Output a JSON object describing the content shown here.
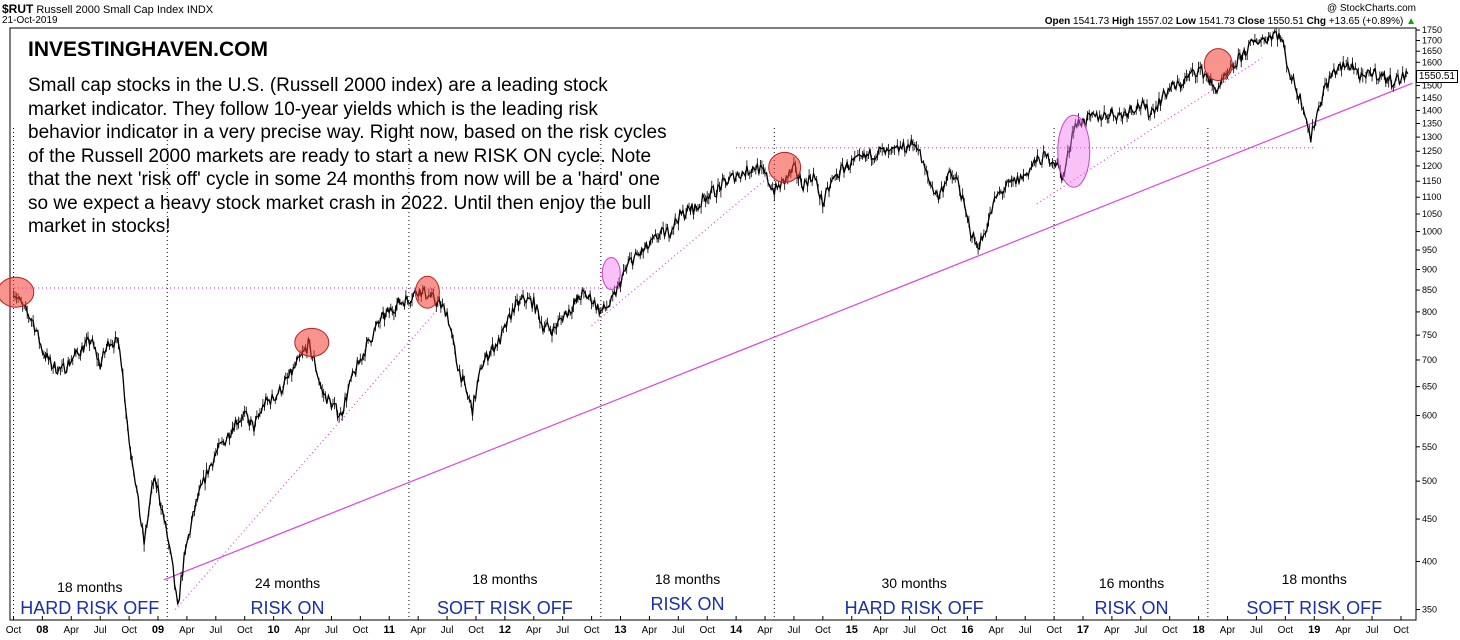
{
  "header": {
    "symbol": "$RUT",
    "name": "Russell 2000 Small Cap Index",
    "exchange": "INDX",
    "date": "21-Oct-2019",
    "brand": "@ StockCharts.com",
    "open_label": "Open",
    "open": "1541.73",
    "high_label": "High",
    "high": "1557.02",
    "low_label": "Low",
    "low": "1541.73",
    "close_label": "Close",
    "close": "1550.51",
    "chg_label": "Chg",
    "chg": "+13.65 (+0.89%)",
    "chg_arrow": "▲"
  },
  "note": {
    "title": "INVESTINGHAVEN.COM",
    "body": "Small cap stocks in the U.S. (Russell 2000 index) are a leading stock market indicator. They follow 10-year yields which is the leading risk behavior indicator in a very precise way. Right now, based on the risk cycles of the Russell 2000 markets are ready to start a new RISK ON cycle. Note that the next 'risk off' cycle in some 24 months from now will be a 'hard' one so we expect a heavy stock market crash in 2022. Until then enjoy the bull market in stocks!"
  },
  "chart_data": {
    "type": "line",
    "scale": "log",
    "ylim": [
      340,
      1760
    ],
    "xlim": [
      2007.72,
      2019.88
    ],
    "y_ticks": [
      350,
      400,
      450,
      500,
      550,
      600,
      650,
      700,
      750,
      800,
      850,
      900,
      950,
      1000,
      1050,
      1100,
      1150,
      1200,
      1250,
      1300,
      1350,
      1400,
      1450,
      1500,
      1550,
      1600,
      1650,
      1700,
      1750
    ],
    "last_value": "1550.51",
    "x_ticks": [
      {
        "label": "Oct",
        "t": 2007.75
      },
      {
        "label": "08",
        "t": 2008.0,
        "major": true
      },
      {
        "label": "Apr",
        "t": 2008.25
      },
      {
        "label": "Jul",
        "t": 2008.5
      },
      {
        "label": "Oct",
        "t": 2008.75
      },
      {
        "label": "09",
        "t": 2009.0,
        "major": true
      },
      {
        "label": "Apr",
        "t": 2009.25
      },
      {
        "label": "Jul",
        "t": 2009.5
      },
      {
        "label": "Oct",
        "t": 2009.75
      },
      {
        "label": "10",
        "t": 2010.0,
        "major": true
      },
      {
        "label": "Apr",
        "t": 2010.25
      },
      {
        "label": "Jul",
        "t": 2010.5
      },
      {
        "label": "Oct",
        "t": 2010.75
      },
      {
        "label": "11",
        "t": 2011.0,
        "major": true
      },
      {
        "label": "Apr",
        "t": 2011.25
      },
      {
        "label": "Jul",
        "t": 2011.5
      },
      {
        "label": "Oct",
        "t": 2011.75
      },
      {
        "label": "12",
        "t": 2012.0,
        "major": true
      },
      {
        "label": "Apr",
        "t": 2012.25
      },
      {
        "label": "Jul",
        "t": 2012.5
      },
      {
        "label": "Oct",
        "t": 2012.75
      },
      {
        "label": "13",
        "t": 2013.0,
        "major": true
      },
      {
        "label": "Apr",
        "t": 2013.25
      },
      {
        "label": "Jul",
        "t": 2013.5
      },
      {
        "label": "Oct",
        "t": 2013.75
      },
      {
        "label": "14",
        "t": 2014.0,
        "major": true
      },
      {
        "label": "Apr",
        "t": 2014.25
      },
      {
        "label": "Jul",
        "t": 2014.5
      },
      {
        "label": "Oct",
        "t": 2014.75
      },
      {
        "label": "15",
        "t": 2015.0,
        "major": true
      },
      {
        "label": "Apr",
        "t": 2015.25
      },
      {
        "label": "Jul",
        "t": 2015.5
      },
      {
        "label": "Oct",
        "t": 2015.75
      },
      {
        "label": "16",
        "t": 2016.0,
        "major": true
      },
      {
        "label": "Apr",
        "t": 2016.25
      },
      {
        "label": "Jul",
        "t": 2016.5
      },
      {
        "label": "Oct",
        "t": 2016.75
      },
      {
        "label": "17",
        "t": 2017.0,
        "major": true
      },
      {
        "label": "Apr",
        "t": 2017.25
      },
      {
        "label": "Jul",
        "t": 2017.5
      },
      {
        "label": "Oct",
        "t": 2017.75
      },
      {
        "label": "18",
        "t": 2018.0,
        "major": true
      },
      {
        "label": "Apr",
        "t": 2018.25
      },
      {
        "label": "Jul",
        "t": 2018.5
      },
      {
        "label": "Oct",
        "t": 2018.75
      },
      {
        "label": "19",
        "t": 2019.0,
        "major": true
      },
      {
        "label": "Apr",
        "t": 2019.25
      },
      {
        "label": "Jul",
        "t": 2019.5
      },
      {
        "label": "Oct",
        "t": 2019.75
      }
    ],
    "series": [
      {
        "points": [
          [
            2007.75,
            850
          ],
          [
            2007.83,
            810
          ],
          [
            2007.92,
            780
          ],
          [
            2008.0,
            720
          ],
          [
            2008.08,
            690
          ],
          [
            2008.17,
            680
          ],
          [
            2008.25,
            700
          ],
          [
            2008.33,
            720
          ],
          [
            2008.42,
            740
          ],
          [
            2008.5,
            690
          ],
          [
            2008.58,
            740
          ],
          [
            2008.67,
            730
          ],
          [
            2008.75,
            560
          ],
          [
            2008.79,
            520
          ],
          [
            2008.83,
            470
          ],
          [
            2008.88,
            420
          ],
          [
            2008.92,
            460
          ],
          [
            2008.96,
            500
          ],
          [
            2009.0,
            490
          ],
          [
            2009.08,
            430
          ],
          [
            2009.13,
            390
          ],
          [
            2009.17,
            350
          ],
          [
            2009.2,
            380
          ],
          [
            2009.25,
            420
          ],
          [
            2009.33,
            470
          ],
          [
            2009.42,
            510
          ],
          [
            2009.5,
            540
          ],
          [
            2009.58,
            560
          ],
          [
            2009.67,
            590
          ],
          [
            2009.75,
            600
          ],
          [
            2009.83,
            580
          ],
          [
            2009.92,
            620
          ],
          [
            2010.0,
            630
          ],
          [
            2010.08,
            650
          ],
          [
            2010.17,
            680
          ],
          [
            2010.25,
            710
          ],
          [
            2010.3,
            730
          ],
          [
            2010.35,
            700
          ],
          [
            2010.42,
            640
          ],
          [
            2010.5,
            620
          ],
          [
            2010.58,
            600
          ],
          [
            2010.67,
            660
          ],
          [
            2010.75,
            700
          ],
          [
            2010.83,
            740
          ],
          [
            2010.92,
            780
          ],
          [
            2011.0,
            800
          ],
          [
            2011.08,
            820
          ],
          [
            2011.17,
            830
          ],
          [
            2011.25,
            850
          ],
          [
            2011.33,
            840
          ],
          [
            2011.42,
            820
          ],
          [
            2011.5,
            800
          ],
          [
            2011.58,
            700
          ],
          [
            2011.65,
            650
          ],
          [
            2011.72,
            610
          ],
          [
            2011.8,
            690
          ],
          [
            2011.88,
            720
          ],
          [
            2011.96,
            740
          ],
          [
            2012.08,
            810
          ],
          [
            2012.17,
            830
          ],
          [
            2012.25,
            820
          ],
          [
            2012.33,
            770
          ],
          [
            2012.42,
            760
          ],
          [
            2012.5,
            790
          ],
          [
            2012.58,
            810
          ],
          [
            2012.67,
            840
          ],
          [
            2012.75,
            830
          ],
          [
            2012.83,
            800
          ],
          [
            2012.92,
            820
          ],
          [
            2013.0,
            870
          ],
          [
            2013.08,
            920
          ],
          [
            2013.17,
            940
          ],
          [
            2013.25,
            960
          ],
          [
            2013.33,
            990
          ],
          [
            2013.42,
            1000
          ],
          [
            2013.5,
            1040
          ],
          [
            2013.58,
            1060
          ],
          [
            2013.67,
            1070
          ],
          [
            2013.75,
            1110
          ],
          [
            2013.83,
            1120
          ],
          [
            2013.92,
            1150
          ],
          [
            2014.0,
            1170
          ],
          [
            2014.08,
            1180
          ],
          [
            2014.17,
            1200
          ],
          [
            2014.25,
            1170
          ],
          [
            2014.33,
            1120
          ],
          [
            2014.42,
            1150
          ],
          [
            2014.5,
            1190
          ],
          [
            2014.58,
            1140
          ],
          [
            2014.67,
            1170
          ],
          [
            2014.75,
            1080
          ],
          [
            2014.83,
            1150
          ],
          [
            2014.92,
            1190
          ],
          [
            2015.0,
            1210
          ],
          [
            2015.08,
            1220
          ],
          [
            2015.17,
            1240
          ],
          [
            2015.25,
            1250
          ],
          [
            2015.33,
            1240
          ],
          [
            2015.42,
            1260
          ],
          [
            2015.5,
            1270
          ],
          [
            2015.56,
            1280
          ],
          [
            2015.62,
            1200
          ],
          [
            2015.67,
            1150
          ],
          [
            2015.75,
            1100
          ],
          [
            2015.83,
            1170
          ],
          [
            2015.92,
            1150
          ],
          [
            2016.0,
            1030
          ],
          [
            2016.08,
            960
          ],
          [
            2016.13,
            980
          ],
          [
            2016.25,
            1100
          ],
          [
            2016.33,
            1130
          ],
          [
            2016.42,
            1150
          ],
          [
            2016.5,
            1170
          ],
          [
            2016.58,
            1210
          ],
          [
            2016.67,
            1230
          ],
          [
            2016.75,
            1220
          ],
          [
            2016.83,
            1160
          ],
          [
            2016.92,
            1340
          ],
          [
            2017.0,
            1360
          ],
          [
            2017.08,
            1370
          ],
          [
            2017.17,
            1380
          ],
          [
            2017.25,
            1390
          ],
          [
            2017.33,
            1380
          ],
          [
            2017.42,
            1410
          ],
          [
            2017.5,
            1420
          ],
          [
            2017.58,
            1390
          ],
          [
            2017.67,
            1440
          ],
          [
            2017.75,
            1490
          ],
          [
            2017.83,
            1500
          ],
          [
            2017.92,
            1540
          ],
          [
            2018.0,
            1570
          ],
          [
            2018.08,
            1540
          ],
          [
            2018.13,
            1480
          ],
          [
            2018.2,
            1510
          ],
          [
            2018.25,
            1540
          ],
          [
            2018.33,
            1600
          ],
          [
            2018.42,
            1660
          ],
          [
            2018.5,
            1700
          ],
          [
            2018.58,
            1710
          ],
          [
            2018.67,
            1740
          ],
          [
            2018.72,
            1700
          ],
          [
            2018.79,
            1550
          ],
          [
            2018.85,
            1480
          ],
          [
            2018.92,
            1400
          ],
          [
            2018.97,
            1290
          ],
          [
            2019.0,
            1350
          ],
          [
            2019.08,
            1480
          ],
          [
            2019.17,
            1560
          ],
          [
            2019.25,
            1580
          ],
          [
            2019.33,
            1590
          ],
          [
            2019.42,
            1520
          ],
          [
            2019.5,
            1560
          ],
          [
            2019.58,
            1540
          ],
          [
            2019.67,
            1520
          ],
          [
            2019.75,
            1530
          ],
          [
            2019.81,
            1550
          ]
        ]
      }
    ],
    "trendlines": [
      {
        "from": [
          2009.05,
          380
        ],
        "to": [
          2019.85,
          1510
        ],
        "style": "solid"
      },
      {
        "from": [
          2009.15,
          350
        ],
        "to": [
          2011.4,
          800
        ],
        "style": "dotted"
      },
      {
        "from": [
          2012.75,
          770
        ],
        "to": [
          2014.3,
          1170
        ],
        "style": "dotted"
      },
      {
        "from": [
          2016.6,
          1080
        ],
        "to": [
          2018.55,
          1620
        ],
        "style": "dotted"
      },
      {
        "from": [
          2007.72,
          855
        ],
        "to": [
          2012.95,
          855
        ],
        "style": "dotted-h"
      },
      {
        "from": [
          2014.0,
          1262
        ],
        "to": [
          2019.0,
          1262
        ],
        "style": "dotted-h"
      }
    ],
    "dividers": [
      2007.75,
      2009.08,
      2011.17,
      2012.83,
      2014.33,
      2016.75,
      2018.08
    ],
    "highlights": [
      {
        "t": 2007.77,
        "v": 845,
        "color": "red",
        "rx": 18,
        "ry": 15
      },
      {
        "t": 2010.33,
        "v": 735,
        "color": "red",
        "rx": 17,
        "ry": 14
      },
      {
        "t": 2011.33,
        "v": 845,
        "color": "red",
        "rx": 12,
        "ry": 16
      },
      {
        "t": 2014.42,
        "v": 1195,
        "color": "red",
        "rx": 16,
        "ry": 15
      },
      {
        "t": 2018.17,
        "v": 1590,
        "color": "red",
        "rx": 14,
        "ry": 16
      },
      {
        "t": 2012.92,
        "v": 890,
        "color": "pink",
        "rx": 9,
        "ry": 16
      },
      {
        "t": 2016.92,
        "v": 1250,
        "color": "pink",
        "rx": 16,
        "ry": 36
      }
    ],
    "annotations": [
      {
        "months": "18 months",
        "phase": "HARD RISK OFF",
        "t": 2008.41
      },
      {
        "months": "24 months",
        "phase": "RISK ON",
        "t": 2010.12
      },
      {
        "months": "18 months",
        "phase": "SOFT RISK OFF",
        "t": 2012.0
      },
      {
        "months": "18 months",
        "phase": "RISK ON",
        "t": 2013.58
      },
      {
        "months": "30 months",
        "phase": "HARD RISK OFF",
        "t": 2015.54
      },
      {
        "months": "16 months",
        "phase": "RISK ON",
        "t": 2017.42
      },
      {
        "months": "18 months",
        "phase": "SOFT RISK OFF",
        "t": 2019.0
      }
    ]
  }
}
